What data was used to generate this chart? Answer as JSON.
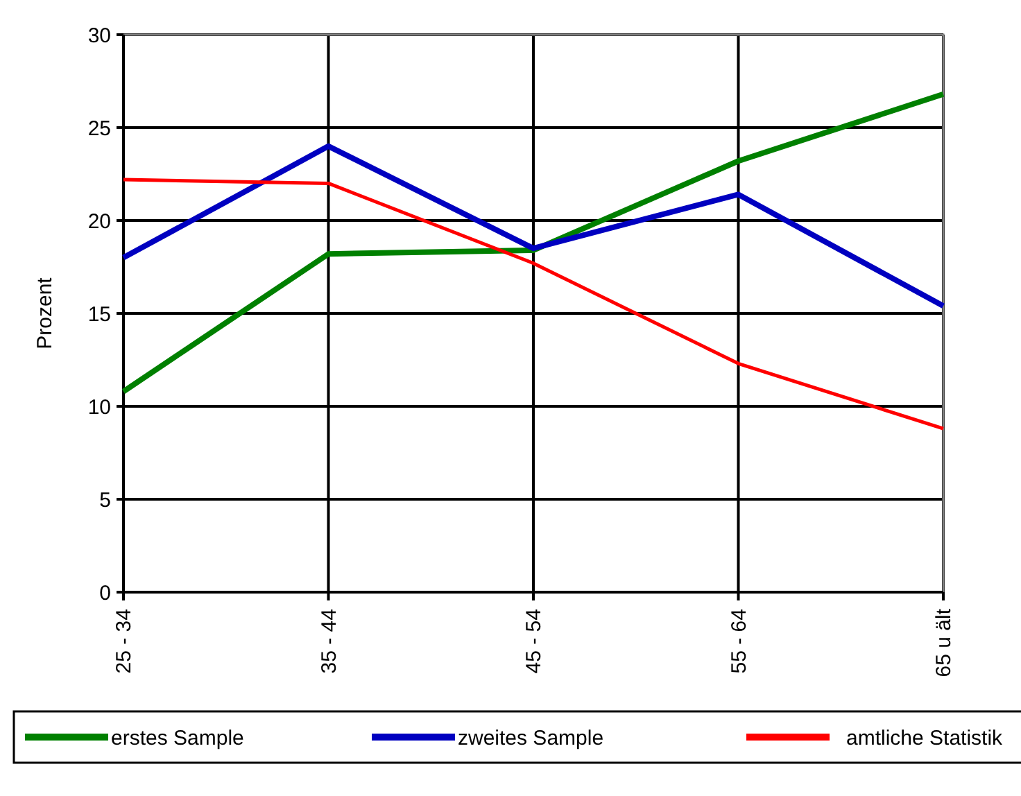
{
  "chart_data": {
    "type": "line",
    "ylabel": "Prozent",
    "categories": [
      "25 - 34",
      "35 - 44",
      "45 - 54",
      "55 - 64",
      "65 u ält"
    ],
    "series": [
      {
        "name": "erstes Sample",
        "color": "#008000",
        "values": [
          10.8,
          18.2,
          18.4,
          23.2,
          26.8
        ]
      },
      {
        "name": "zweites Sample",
        "color": "#0000c0",
        "values": [
          18.0,
          24.0,
          18.5,
          21.4,
          15.4
        ]
      },
      {
        "name": "amtliche Statistik",
        "color": "#ff0000",
        "values": [
          22.2,
          22.0,
          17.7,
          12.3,
          8.8
        ]
      }
    ],
    "ylim": [
      0,
      30
    ],
    "yticks": [
      0,
      5,
      10,
      15,
      20,
      25,
      30
    ],
    "grid": true,
    "legend": "bottom",
    "marker": "none",
    "line_style": "solid"
  }
}
